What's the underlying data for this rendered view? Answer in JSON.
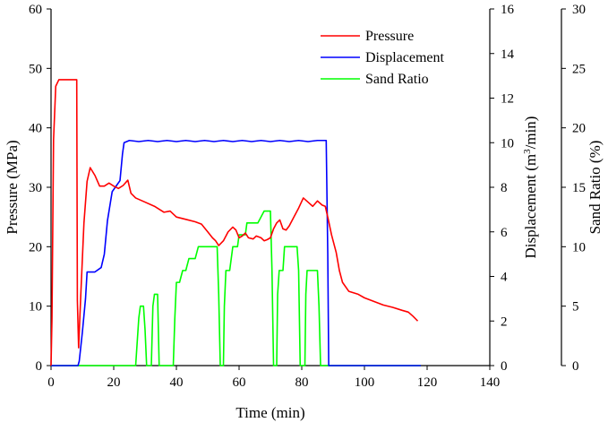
{
  "chart_data": {
    "type": "line",
    "title": "",
    "xlabel": "Time (min)",
    "xlim": [
      0,
      140
    ],
    "xticks": [
      "0",
      "20",
      "40",
      "60",
      "80",
      "100",
      "120",
      "140"
    ],
    "axes": {
      "pressure": {
        "label": "Pressure (MPa)",
        "lim": [
          0,
          60
        ],
        "ticks": [
          "0",
          "10",
          "20",
          "30",
          "40",
          "50",
          "60"
        ]
      },
      "displacement": {
        "label_main": "Displacement (m",
        "label_sup": "3",
        "label_tail": "/min)",
        "lim": [
          0,
          16
        ],
        "ticks": [
          "0",
          "2",
          "4",
          "6",
          "8",
          "10",
          "12",
          "14",
          "16"
        ]
      },
      "sand_ratio": {
        "label": "Sand Ratio (%)",
        "lim": [
          0,
          30
        ],
        "ticks": [
          "0",
          "5",
          "10",
          "15",
          "20",
          "25",
          "30"
        ]
      }
    },
    "legend_position": "top-right",
    "series": [
      {
        "name": "Pressure",
        "axis": "pressure",
        "color": "#ff0000",
        "points": [
          [
            0,
            0
          ],
          [
            0.3,
            8
          ],
          [
            0.8,
            38
          ],
          [
            1.5,
            47
          ],
          [
            2.5,
            48.1
          ],
          [
            5,
            48.1
          ],
          [
            7.5,
            48.1
          ],
          [
            8.2,
            48.1
          ],
          [
            8.4,
            11
          ],
          [
            8.8,
            3
          ],
          [
            9.5,
            12
          ],
          [
            10.5,
            24
          ],
          [
            11.5,
            31
          ],
          [
            12.5,
            33.3
          ],
          [
            14,
            32
          ],
          [
            15.5,
            30.2
          ],
          [
            17,
            30.2
          ],
          [
            18.5,
            30.7
          ],
          [
            20,
            30.2
          ],
          [
            21.5,
            29.8
          ],
          [
            23,
            30.3
          ],
          [
            24.5,
            31.2
          ],
          [
            25.5,
            29
          ],
          [
            27,
            28.2
          ],
          [
            30,
            27.5
          ],
          [
            33,
            26.8
          ],
          [
            36,
            25.8
          ],
          [
            38,
            26
          ],
          [
            40,
            25
          ],
          [
            43,
            24.6
          ],
          [
            46,
            24.2
          ],
          [
            48,
            23.8
          ],
          [
            50,
            22.5
          ],
          [
            51.5,
            21.5
          ],
          [
            52.5,
            21
          ],
          [
            53.5,
            20.2
          ],
          [
            55,
            21
          ],
          [
            56.5,
            22.5
          ],
          [
            58,
            23.3
          ],
          [
            59,
            22.8
          ],
          [
            60,
            21.5
          ],
          [
            61,
            21.8
          ],
          [
            62,
            22.3
          ],
          [
            63,
            21.5
          ],
          [
            64.5,
            21.3
          ],
          [
            65.5,
            21.8
          ],
          [
            67,
            21.5
          ],
          [
            68,
            21
          ],
          [
            69,
            21.2
          ],
          [
            70,
            21.5
          ],
          [
            71,
            23
          ],
          [
            72,
            24
          ],
          [
            73,
            24.5
          ],
          [
            74,
            23
          ],
          [
            75,
            22.8
          ],
          [
            76,
            23.5
          ],
          [
            77.5,
            25
          ],
          [
            79,
            26.5
          ],
          [
            80.5,
            28.2
          ],
          [
            82,
            27.5
          ],
          [
            83.5,
            26.8
          ],
          [
            85,
            27.7
          ],
          [
            86.5,
            27
          ],
          [
            87.5,
            26.8
          ],
          [
            88.5,
            24.5
          ],
          [
            89.5,
            22
          ],
          [
            91,
            19
          ],
          [
            92,
            16
          ],
          [
            93,
            14
          ],
          [
            95,
            12.5
          ],
          [
            98,
            12
          ],
          [
            100,
            11.4
          ],
          [
            103,
            10.8
          ],
          [
            106,
            10.2
          ],
          [
            109,
            9.8
          ],
          [
            112,
            9.3
          ],
          [
            114,
            9
          ],
          [
            115.5,
            8.3
          ],
          [
            117,
            7.5
          ]
        ]
      },
      {
        "name": "Displacement",
        "axis": "displacement",
        "color": "#0000ff",
        "points": [
          [
            0,
            0
          ],
          [
            8.6,
            0
          ],
          [
            9,
            0.2
          ],
          [
            10,
            1.5
          ],
          [
            11,
            3
          ],
          [
            11.5,
            4.2
          ],
          [
            12,
            4.2
          ],
          [
            14,
            4.2
          ],
          [
            16,
            4.4
          ],
          [
            17,
            5
          ],
          [
            18,
            6.5
          ],
          [
            19.5,
            7.8
          ],
          [
            21,
            8.1
          ],
          [
            22,
            8.3
          ],
          [
            22.8,
            9.5
          ],
          [
            23.3,
            10
          ],
          [
            25,
            10.1
          ],
          [
            28,
            10.05
          ],
          [
            31,
            10.1
          ],
          [
            34,
            10.05
          ],
          [
            37,
            10.1
          ],
          [
            40,
            10.05
          ],
          [
            43,
            10.1
          ],
          [
            46,
            10.05
          ],
          [
            49,
            10.1
          ],
          [
            52,
            10.05
          ],
          [
            55,
            10.1
          ],
          [
            58,
            10.05
          ],
          [
            61,
            10.1
          ],
          [
            64,
            10.05
          ],
          [
            67,
            10.1
          ],
          [
            70,
            10.05
          ],
          [
            73,
            10.1
          ],
          [
            76,
            10.05
          ],
          [
            79,
            10.1
          ],
          [
            82,
            10.05
          ],
          [
            85,
            10.1
          ],
          [
            87.8,
            10.1
          ],
          [
            88.3,
            5
          ],
          [
            88.6,
            0
          ],
          [
            118,
            0
          ]
        ]
      },
      {
        "name": "Sand Ratio",
        "axis": "sand_ratio",
        "color": "#00ff00",
        "points": [
          [
            0,
            0
          ],
          [
            27,
            0
          ],
          [
            27.5,
            2
          ],
          [
            28,
            4
          ],
          [
            28.5,
            5
          ],
          [
            29.5,
            5
          ],
          [
            30,
            3
          ],
          [
            30.5,
            0
          ],
          [
            32,
            0
          ],
          [
            32.5,
            5
          ],
          [
            33,
            6
          ],
          [
            34,
            6
          ],
          [
            34.5,
            0
          ],
          [
            39,
            0
          ],
          [
            39.5,
            4
          ],
          [
            40,
            7
          ],
          [
            41,
            7
          ],
          [
            42,
            8
          ],
          [
            43,
            8
          ],
          [
            44,
            9
          ],
          [
            46,
            9
          ],
          [
            47,
            10
          ],
          [
            49,
            10
          ],
          [
            50,
            10
          ],
          [
            51,
            10
          ],
          [
            53,
            10
          ],
          [
            53.5,
            6
          ],
          [
            54,
            0
          ],
          [
            55,
            0
          ],
          [
            55.3,
            5
          ],
          [
            55.8,
            8
          ],
          [
            57,
            8
          ],
          [
            58,
            10
          ],
          [
            59.5,
            10
          ],
          [
            60,
            11
          ],
          [
            62,
            11
          ],
          [
            62.5,
            12
          ],
          [
            65,
            12
          ],
          [
            66,
            12
          ],
          [
            67,
            12.5
          ],
          [
            68,
            13
          ],
          [
            69,
            13
          ],
          [
            70,
            13
          ],
          [
            70.5,
            8
          ],
          [
            71,
            0
          ],
          [
            72,
            0
          ],
          [
            72.3,
            6
          ],
          [
            72.8,
            8
          ],
          [
            74,
            8
          ],
          [
            74.5,
            10
          ],
          [
            78,
            10
          ],
          [
            78.5,
            10
          ],
          [
            79,
            8
          ],
          [
            79.5,
            0
          ],
          [
            81,
            0
          ],
          [
            81.3,
            6
          ],
          [
            81.7,
            8
          ],
          [
            85,
            8
          ],
          [
            85.5,
            5
          ],
          [
            86,
            0
          ],
          [
            118,
            0
          ]
        ]
      }
    ]
  }
}
